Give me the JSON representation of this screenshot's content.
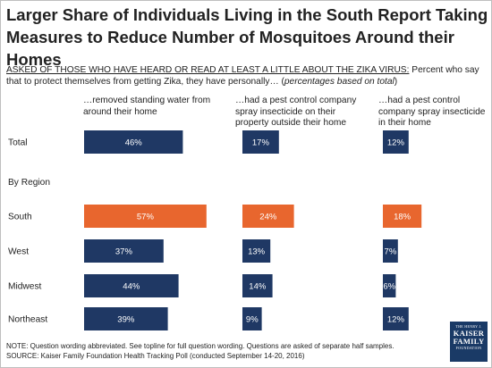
{
  "title": "Larger Share of Individuals Living in the South Report Taking Measures to Reduce Number of Mosquitoes Around their Homes",
  "subtitle": {
    "underlined": "ASKED OF THOSE WHO HAVE HEARD OR READ AT LEAST A LITTLE ABOUT THE ZIKA VIRUS:",
    "text": " Percent who say that to protect themselves from getting Zika, they have personally… (",
    "italic": "percentages based on total",
    "end": ")"
  },
  "colors": {
    "navy": "#1f3864",
    "orange": "#e8662e"
  },
  "note": "NOTE: Question wording abbreviated. See topline for full question wording. Questions are asked of separate half samples.",
  "source": "SOURCE: Kaiser Family Foundation Health Tracking Poll (conducted September 14-20, 2016)",
  "logo": {
    "line1": "THE HENRY J.",
    "line2": "KAISER",
    "line3": "FAMILY",
    "line4": "FOUNDATION"
  },
  "chart_data": {
    "type": "bar",
    "orientation": "horizontal",
    "group_label": "By Region",
    "panels": [
      {
        "header": "…removed standing water from around their home"
      },
      {
        "header": "…had a pest control company spray insecticide on their property outside their home"
      },
      {
        "header": "…had a pest control company spray insecticide in their home"
      }
    ],
    "rows": [
      {
        "label": "Total",
        "values": [
          46,
          17,
          12
        ],
        "highlight": false
      },
      {
        "label": "South",
        "values": [
          57,
          24,
          18
        ],
        "highlight": true
      },
      {
        "label": "West",
        "values": [
          37,
          13,
          7
        ],
        "highlight": false
      },
      {
        "label": "Midwest",
        "values": [
          44,
          14,
          6
        ],
        "highlight": false
      },
      {
        "label": "Northeast",
        "values": [
          39,
          9,
          12
        ],
        "highlight": false
      }
    ],
    "value_suffix": "%"
  }
}
